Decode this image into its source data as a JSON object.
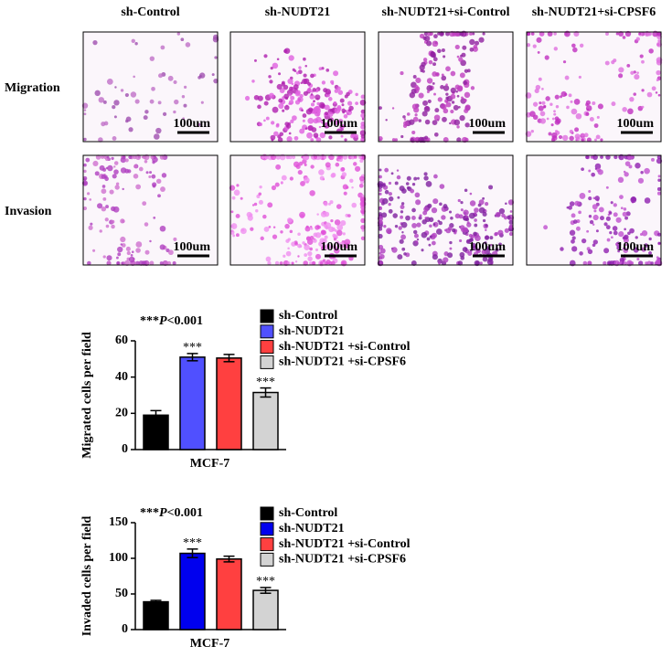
{
  "panel": {
    "columns": [
      "sh-Control",
      "sh-NUDT21",
      "sh-NUDT21+si-Control",
      "sh-NUDT21+si-CPSF6"
    ],
    "rows": [
      "Migration",
      "Invasion"
    ],
    "scale_label": "100um"
  },
  "chart_data": [
    {
      "type": "bar",
      "ylabel": "Migrated cells per field",
      "xlabel": "MCF-7",
      "annotation": {
        "prefix": "***",
        "italic": "P",
        "suffix": "<0.001"
      },
      "categories": [
        "MCF-7"
      ],
      "series": [
        {
          "name": "sh-Control",
          "color": "#000000",
          "values": [
            19
          ],
          "errors": [
            2.5
          ]
        },
        {
          "name": "sh-NUDT21",
          "color": "#5050ff",
          "values": [
            51
          ],
          "errors": [
            2
          ],
          "significance": "***"
        },
        {
          "name": "sh-NUDT21 +si-Control",
          "color": "#ff4040",
          "values": [
            50.5
          ],
          "errors": [
            2
          ]
        },
        {
          "name": "sh-NUDT21 +si-CPSF6",
          "color": "#d3d3d3",
          "values": [
            31.5
          ],
          "errors": [
            2.5
          ],
          "significance": "***"
        }
      ],
      "ylim": [
        0,
        60
      ],
      "yticks": [
        0,
        20,
        40,
        60
      ]
    },
    {
      "type": "bar",
      "ylabel": "Invaded cells per field",
      "xlabel": "MCF-7",
      "annotation": {
        "prefix": "***",
        "italic": "P",
        "suffix": "<0.001"
      },
      "categories": [
        "MCF-7"
      ],
      "series": [
        {
          "name": "sh-Control",
          "color": "#000000",
          "values": [
            39
          ],
          "errors": [
            2
          ]
        },
        {
          "name": "sh-NUDT21",
          "color": "#0000ee",
          "values": [
            107
          ],
          "errors": [
            6
          ],
          "significance": "***"
        },
        {
          "name": "sh-NUDT21 +si-Control",
          "color": "#ff4040",
          "values": [
            99
          ],
          "errors": [
            4
          ]
        },
        {
          "name": "sh-NUDT21 +si-CPSF6",
          "color": "#d3d3d3",
          "values": [
            55
          ],
          "errors": [
            4
          ],
          "significance": "***"
        }
      ],
      "ylim": [
        0,
        150
      ],
      "yticks": [
        0,
        50,
        100,
        150
      ]
    }
  ]
}
